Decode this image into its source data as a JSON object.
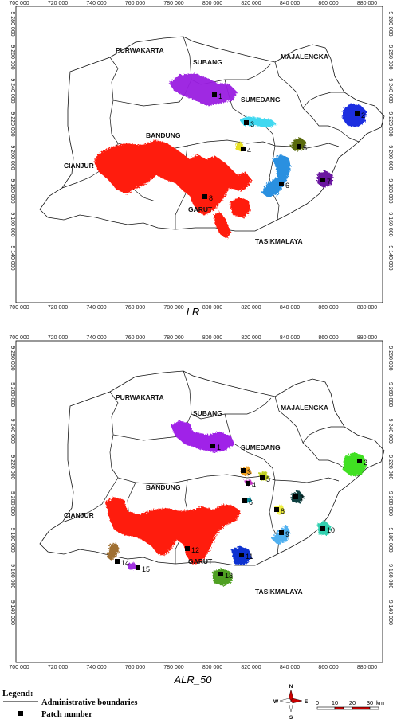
{
  "axes": {
    "x_ticks": [
      "700 000",
      "720 000",
      "740 000",
      "760 000",
      "780 000",
      "800 000",
      "820 000",
      "840 000",
      "860 000",
      "880 000"
    ],
    "y_ticks": [
      "9 280 000",
      "9 260 000",
      "9 240 000",
      "9 220 000",
      "9 200 000",
      "9 180 000",
      "9 160 000",
      "9 140 000"
    ]
  },
  "regions": {
    "purwakarta": "PURWAKARTA",
    "subang": "SUBANG",
    "majalengka": "MAJALENGKA",
    "sumedang": "SUMEDANG",
    "bandung": "BANDUNG",
    "cianjur": "CIANJUR",
    "garut": "GARUT",
    "tasikmalaya": "TASIKMALAYA"
  },
  "maps": [
    {
      "caption": "LR",
      "patches": [
        {
          "label": "1",
          "color": "#9a1fe0"
        },
        {
          "label": "2",
          "color": "#1a2fe0"
        },
        {
          "label": "3",
          "color": "#40d8f0"
        },
        {
          "label": "4",
          "color": "#e8e020"
        },
        {
          "label": "5",
          "color": "#5a6a10"
        },
        {
          "label": "6",
          "color": "#2a90e0"
        },
        {
          "label": "7",
          "color": "#6a18a0"
        },
        {
          "label": "8",
          "color": "#ff1a10"
        }
      ]
    },
    {
      "caption": "ALR_50",
      "patches": [
        {
          "label": "1",
          "color": "#a020e8"
        },
        {
          "label": "2",
          "color": "#40e020"
        },
        {
          "label": "3",
          "color": "#f0a020"
        },
        {
          "label": "4",
          "color": "#c030c0"
        },
        {
          "label": "5",
          "color": "#c0d020"
        },
        {
          "label": "6",
          "color": "#1090a0"
        },
        {
          "label": "7",
          "color": "#104040"
        },
        {
          "label": "8",
          "color": "#f0f040"
        },
        {
          "label": "9",
          "color": "#50b0f0"
        },
        {
          "label": "10",
          "color": "#30d0b0"
        },
        {
          "label": "11",
          "color": "#1030d0"
        },
        {
          "label": "12",
          "color": "#ff1a10"
        },
        {
          "label": "13",
          "color": "#50a020"
        },
        {
          "label": "14",
          "color": "#a07030"
        },
        {
          "label": "15",
          "color": "#a030e0"
        }
      ]
    }
  ],
  "legend": {
    "title": "Legend:",
    "boundaries": "Administrative boundaries",
    "patch": "Patch number"
  },
  "compass": {
    "n": "N",
    "s": "S",
    "e": "E",
    "w": "W"
  },
  "scale": {
    "ticks": [
      "0",
      "10",
      "20",
      "30"
    ],
    "unit": "km"
  }
}
